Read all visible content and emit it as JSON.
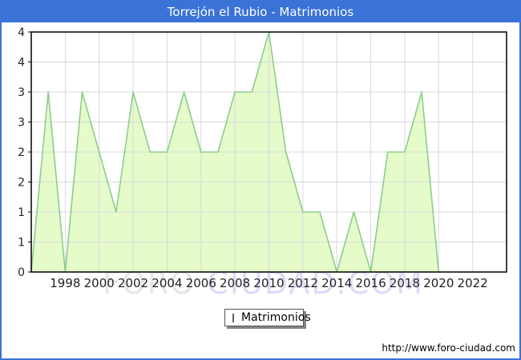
{
  "window": {
    "title": "Torrejón el Rubio - Matrimonios",
    "title_bar_color": "#3a72d8",
    "url": "http://www.foro-ciudad.com"
  },
  "legend": {
    "label": "Matrimonios",
    "swatch_fill": "#c9f2a0",
    "swatch_border": "#556655"
  },
  "watermark": {
    "part1": "FORO",
    "part2": "CIUDAD.COM"
  },
  "chart_data": {
    "type": "area",
    "title": "Torrejón el Rubio - Matrimonios",
    "series": [
      {
        "name": "Matrimonios",
        "x": [
          1996,
          1997,
          1998,
          1999,
          2000,
          2001,
          2002,
          2003,
          2004,
          2005,
          2006,
          2007,
          2008,
          2009,
          2010,
          2011,
          2012,
          2013,
          2014,
          2015,
          2016,
          2017,
          2018,
          2019,
          2020
        ],
        "values": [
          0,
          3,
          0,
          3,
          2,
          1,
          3,
          2,
          2,
          3,
          2,
          2,
          3,
          3,
          4,
          2,
          1,
          1,
          0,
          1,
          0,
          2,
          2,
          3,
          0
        ]
      }
    ],
    "xlim": [
      1996,
      2024
    ],
    "ylim": [
      0,
      4
    ],
    "x_ticks": [
      1998,
      2000,
      2002,
      2004,
      2006,
      2008,
      2010,
      2012,
      2014,
      2016,
      2018,
      2020,
      2022
    ],
    "y_tick_values": [
      0,
      0.5,
      1,
      1.5,
      2,
      2.5,
      3,
      3.5,
      4
    ],
    "y_tick_labels": [
      "0",
      "1",
      "1",
      "2",
      "2",
      "3",
      "3",
      "4",
      "4"
    ],
    "grid": true,
    "legend_position": "bottom",
    "colors": {
      "area_fill": "#e5fbc9",
      "line": "#8ccd8c",
      "grid": "#d8d8e0",
      "plot_border": "#000000",
      "tick_text": "#222222"
    }
  }
}
